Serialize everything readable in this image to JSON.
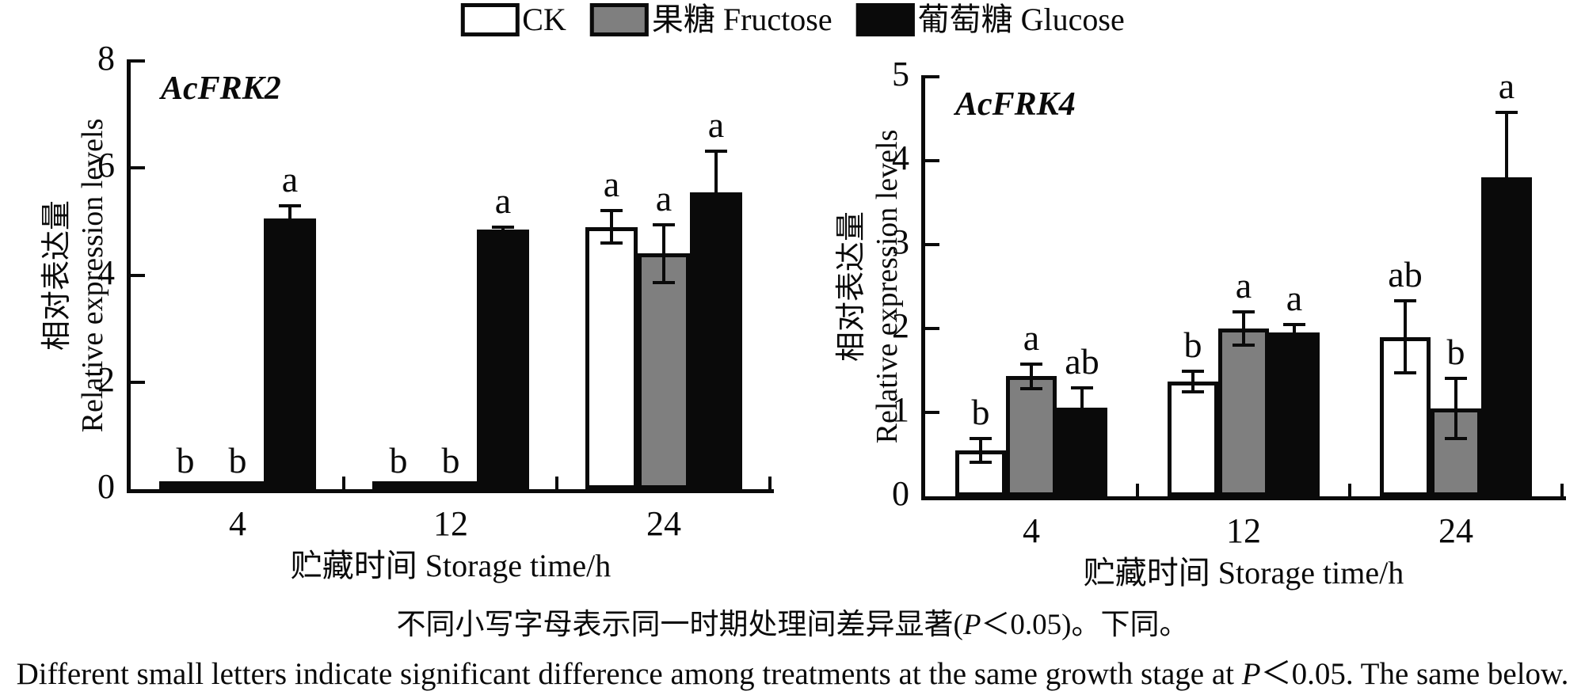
{
  "figure": {
    "background": "#ffffff",
    "bar_outline_color": "#0a0a0a",
    "legend": {
      "items": [
        {
          "label": "CK",
          "fill": "#ffffff"
        },
        {
          "label": "果糖 Fructose",
          "fill": "#7f7f7f"
        },
        {
          "label": "葡萄糖 Glucose",
          "fill": "#0a0a0a"
        }
      ]
    },
    "captions": [
      "不同小写字母表示同一时期处理间差异显著(P＜0.05)。下同。",
      "Different small letters indicate significant difference among treatments at the same growth stage at P＜0.05. The same below."
    ]
  },
  "chart_data": [
    {
      "type": "bar",
      "title": "AcFRK2",
      "xlabel": "贮藏时间 Storage time/h",
      "ylabel_lines": [
        "相对表达量",
        "Relative expression levels"
      ],
      "categories": [
        "4",
        "12",
        "24"
      ],
      "ylim": [
        0,
        8
      ],
      "yticks": [
        0,
        2,
        4,
        6,
        8
      ],
      "grid": false,
      "legend_position": "top",
      "series": [
        {
          "name": "CK",
          "fill": "#ffffff",
          "values": [
            0.05,
            0.05,
            4.9
          ],
          "errors": [
            0,
            0,
            0.3
          ],
          "letters": [
            "b",
            "b",
            "a"
          ]
        },
        {
          "name": "果糖 Fructose",
          "fill": "#7f7f7f",
          "values": [
            0.05,
            0.05,
            4.4
          ],
          "errors": [
            0,
            0,
            0.54
          ],
          "letters": [
            "b",
            "b",
            "a"
          ]
        },
        {
          "name": "葡萄糖 Glucose",
          "fill": "#0a0a0a",
          "values": [
            5.05,
            4.85,
            5.55
          ],
          "errors": [
            0.25,
            0.05,
            0.77
          ],
          "letters": [
            "a",
            "a",
            "a"
          ]
        }
      ]
    },
    {
      "type": "bar",
      "title": "AcFRK4",
      "xlabel": "贮藏时间 Storage time/h",
      "ylabel_lines": [
        "相对表达量",
        "Relative expression levels"
      ],
      "categories": [
        "4",
        "12",
        "24"
      ],
      "ylim": [
        0,
        5
      ],
      "yticks": [
        0,
        1,
        2,
        3,
        4,
        5
      ],
      "grid": false,
      "legend_position": "top",
      "series": [
        {
          "name": "CK",
          "fill": "#ffffff",
          "values": [
            0.55,
            1.37,
            1.9
          ],
          "errors": [
            0.14,
            0.12,
            0.43
          ],
          "letters": [
            "b",
            "b",
            "ab"
          ]
        },
        {
          "name": "果糖 Fructose",
          "fill": "#7f7f7f",
          "values": [
            1.43,
            2.0,
            1.05
          ],
          "errors": [
            0.15,
            0.2,
            0.36
          ],
          "letters": [
            "a",
            "a",
            "b"
          ]
        },
        {
          "name": "葡萄糖 Glucose",
          "fill": "#0a0a0a",
          "values": [
            1.06,
            1.95,
            3.8
          ],
          "errors": [
            0.23,
            0.1,
            0.78
          ],
          "letters": [
            "ab",
            "a",
            "a"
          ]
        }
      ]
    }
  ]
}
